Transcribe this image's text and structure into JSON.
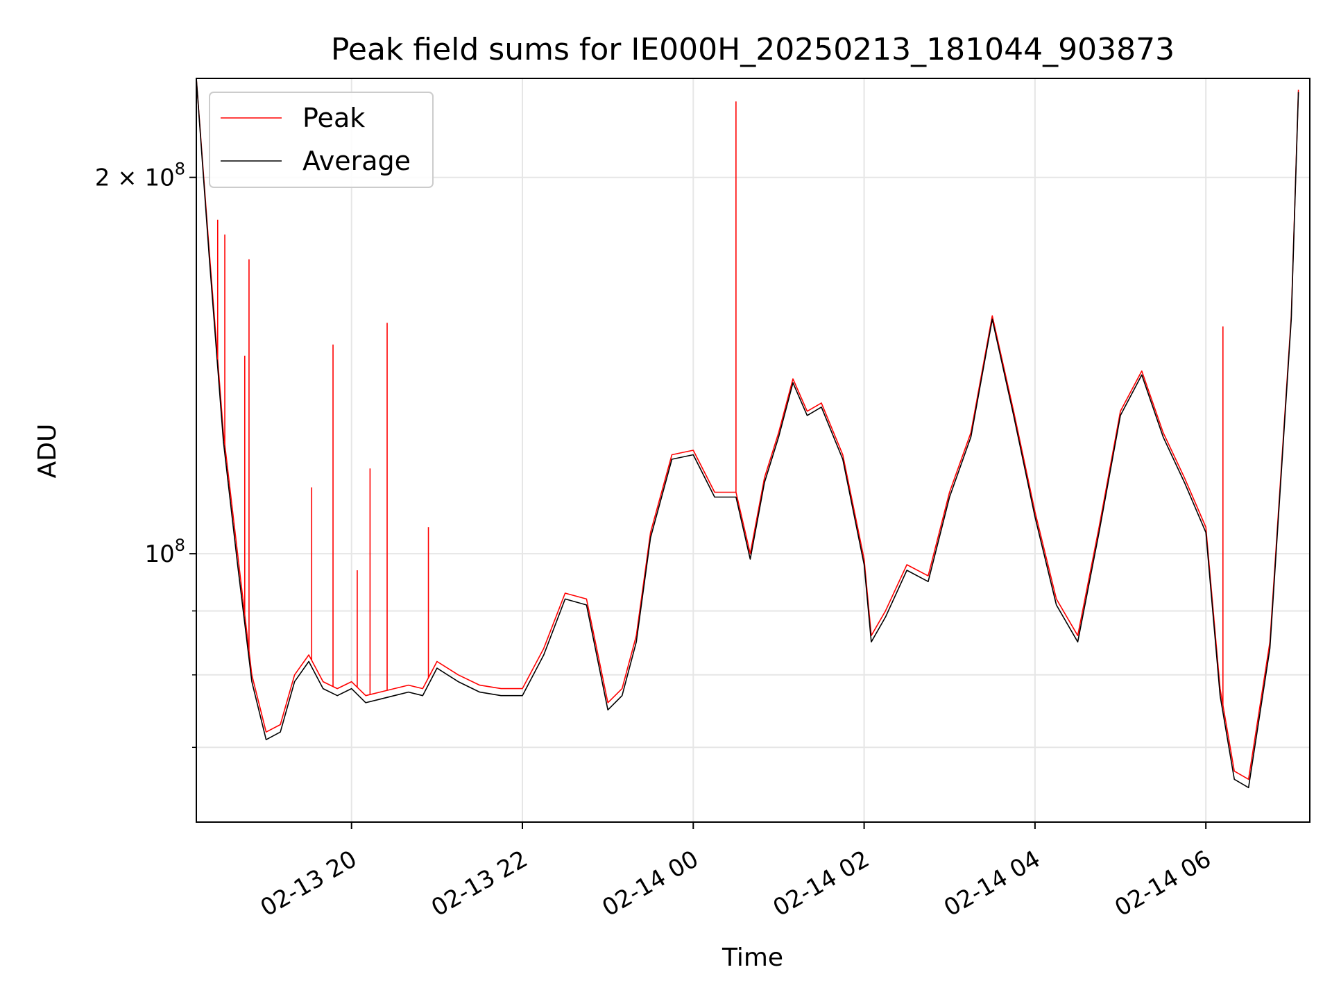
{
  "chart_data": {
    "type": "line",
    "title": "Peak field sums for IE000H_20250213_181044_903873",
    "xlabel": "Time",
    "ylabel": "ADU",
    "yscale": "log",
    "grid": true,
    "legend_position": "top-left",
    "xlim": [
      "2025-02-13 18:11",
      "2025-02-14 07:13"
    ],
    "ylim": [
      61000000,
      240000000
    ],
    "x_ticks": [
      "02-13 20",
      "02-13 22",
      "02-14 00",
      "02-14 02",
      "02-14 04",
      "02-14 06"
    ],
    "x_tick_times": [
      "2025-02-13 20:00",
      "2025-02-13 22:00",
      "2025-02-14 00:00",
      "2025-02-14 02:00",
      "2025-02-14 04:00",
      "2025-02-14 06:00"
    ],
    "y_ticks": [
      {
        "value": 100000000,
        "label_base": "10",
        "label_exp": "8"
      },
      {
        "value": 200000000,
        "label_base": "2 × 10",
        "label_exp": "8"
      }
    ],
    "y_minor_ticks": [
      70000000,
      80000000,
      90000000
    ],
    "series": [
      {
        "name": "Peak",
        "color": "#ff0000",
        "x": [
          "2025-02-13 18:11",
          "2025-02-13 18:20",
          "2025-02-13 18:30",
          "2025-02-13 18:40",
          "2025-02-13 18:50",
          "2025-02-13 19:00",
          "2025-02-13 19:10",
          "2025-02-13 19:20",
          "2025-02-13 19:30",
          "2025-02-13 19:40",
          "2025-02-13 19:50",
          "2025-02-13 20:00",
          "2025-02-13 20:10",
          "2025-02-13 20:20",
          "2025-02-13 20:30",
          "2025-02-13 20:40",
          "2025-02-13 20:50",
          "2025-02-13 21:00",
          "2025-02-13 21:15",
          "2025-02-13 21:30",
          "2025-02-13 21:45",
          "2025-02-13 22:00",
          "2025-02-13 22:15",
          "2025-02-13 22:30",
          "2025-02-13 22:45",
          "2025-02-13 23:00",
          "2025-02-13 23:10",
          "2025-02-13 23:20",
          "2025-02-13 23:30",
          "2025-02-13 23:45",
          "2025-02-14 00:00",
          "2025-02-14 00:15",
          "2025-02-14 00:30",
          "2025-02-14 00:40",
          "2025-02-14 00:50",
          "2025-02-14 01:00",
          "2025-02-14 01:10",
          "2025-02-14 01:20",
          "2025-02-14 01:30",
          "2025-02-14 01:45",
          "2025-02-14 02:00",
          "2025-02-14 02:05",
          "2025-02-14 02:15",
          "2025-02-14 02:30",
          "2025-02-14 02:45",
          "2025-02-14 03:00",
          "2025-02-14 03:15",
          "2025-02-14 03:30",
          "2025-02-14 03:45",
          "2025-02-14 04:00",
          "2025-02-14 04:15",
          "2025-02-14 04:30",
          "2025-02-14 04:45",
          "2025-02-14 05:00",
          "2025-02-14 05:15",
          "2025-02-14 05:30",
          "2025-02-14 05:45",
          "2025-02-14 06:00",
          "2025-02-14 06:10",
          "2025-02-14 06:20",
          "2025-02-14 06:30",
          "2025-02-14 06:45",
          "2025-02-14 07:00",
          "2025-02-14 07:05"
        ],
        "y": [
          240000000,
          175000000,
          125000000,
          100000000,
          80000000,
          72000000,
          73000000,
          80000000,
          83000000,
          79000000,
          78000000,
          79000000,
          77000000,
          77500000,
          78000000,
          78500000,
          78000000,
          82000000,
          80000000,
          78500000,
          78000000,
          78000000,
          84000000,
          93000000,
          92000000,
          76000000,
          78000000,
          86000000,
          104000000,
          120000000,
          121000000,
          112000000,
          112000000,
          100000000,
          115000000,
          125000000,
          138000000,
          130000000,
          132000000,
          120000000,
          99000000,
          86000000,
          90000000,
          98000000,
          96000000,
          112000000,
          125000000,
          155000000,
          130000000,
          108000000,
          92000000,
          86000000,
          105000000,
          130000000,
          140000000,
          125000000,
          115000000,
          105000000,
          78000000,
          67000000,
          66000000,
          85000000,
          155000000,
          235000000
        ]
      },
      {
        "name": "Average",
        "color": "#000000",
        "x": [
          "2025-02-13 18:11",
          "2025-02-13 18:20",
          "2025-02-13 18:30",
          "2025-02-13 18:40",
          "2025-02-13 18:50",
          "2025-02-13 19:00",
          "2025-02-13 19:10",
          "2025-02-13 19:20",
          "2025-02-13 19:30",
          "2025-02-13 19:40",
          "2025-02-13 19:50",
          "2025-02-13 20:00",
          "2025-02-13 20:10",
          "2025-02-13 20:20",
          "2025-02-13 20:30",
          "2025-02-13 20:40",
          "2025-02-13 20:50",
          "2025-02-13 21:00",
          "2025-02-13 21:15",
          "2025-02-13 21:30",
          "2025-02-13 21:45",
          "2025-02-13 22:00",
          "2025-02-13 22:15",
          "2025-02-13 22:30",
          "2025-02-13 22:45",
          "2025-02-13 23:00",
          "2025-02-13 23:10",
          "2025-02-13 23:20",
          "2025-02-13 23:30",
          "2025-02-13 23:45",
          "2025-02-14 00:00",
          "2025-02-14 00:15",
          "2025-02-14 00:30",
          "2025-02-14 00:40",
          "2025-02-14 00:50",
          "2025-02-14 01:00",
          "2025-02-14 01:10",
          "2025-02-14 01:20",
          "2025-02-14 01:30",
          "2025-02-14 01:45",
          "2025-02-14 02:00",
          "2025-02-14 02:05",
          "2025-02-14 02:15",
          "2025-02-14 02:30",
          "2025-02-14 02:45",
          "2025-02-14 03:00",
          "2025-02-14 03:15",
          "2025-02-14 03:30",
          "2025-02-14 03:45",
          "2025-02-14 04:00",
          "2025-02-14 04:15",
          "2025-02-14 04:30",
          "2025-02-14 04:45",
          "2025-02-14 05:00",
          "2025-02-14 05:15",
          "2025-02-14 05:30",
          "2025-02-14 05:45",
          "2025-02-14 06:00",
          "2025-02-14 06:10",
          "2025-02-14 06:20",
          "2025-02-14 06:30",
          "2025-02-14 06:45",
          "2025-02-14 07:00",
          "2025-02-14 07:05"
        ],
        "y": [
          240000000,
          173000000,
          123000000,
          98000000,
          79000000,
          71000000,
          72000000,
          79000000,
          82000000,
          78000000,
          77000000,
          78000000,
          76000000,
          76500000,
          77000000,
          77500000,
          77000000,
          81000000,
          79000000,
          77500000,
          77000000,
          77000000,
          83000000,
          92000000,
          91000000,
          75000000,
          77000000,
          85000000,
          103000000,
          119000000,
          120000000,
          111000000,
          111000000,
          99000000,
          114000000,
          124000000,
          137000000,
          129000000,
          131000000,
          119000000,
          98000000,
          85000000,
          89000000,
          97000000,
          95000000,
          111000000,
          124000000,
          154000000,
          129000000,
          107000000,
          91000000,
          85000000,
          104000000,
          129000000,
          139000000,
          124000000,
          114000000,
          104000000,
          77000000,
          66000000,
          65000000,
          84000000,
          154000000,
          234000000
        ]
      }
    ],
    "spikes": [
      {
        "series": "Peak",
        "x": "2025-02-13 18:26",
        "y": 185000000
      },
      {
        "series": "Peak",
        "x": "2025-02-13 18:31",
        "y": 180000000
      },
      {
        "series": "Peak",
        "x": "2025-02-13 18:45",
        "y": 144000000
      },
      {
        "series": "Peak",
        "x": "2025-02-13 18:48",
        "y": 172000000
      },
      {
        "series": "Peak",
        "x": "2025-02-13 19:32",
        "y": 113000000
      },
      {
        "series": "Peak",
        "x": "2025-02-13 19:47",
        "y": 147000000
      },
      {
        "series": "Peak",
        "x": "2025-02-13 20:04",
        "y": 97000000
      },
      {
        "series": "Peak",
        "x": "2025-02-13 20:13",
        "y": 117000000
      },
      {
        "series": "Peak",
        "x": "2025-02-13 20:25",
        "y": 153000000
      },
      {
        "series": "Peak",
        "x": "2025-02-13 20:54",
        "y": 105000000
      },
      {
        "series": "Peak",
        "x": "2025-02-14 00:30",
        "y": 230000000
      },
      {
        "series": "Peak",
        "x": "2025-02-14 06:12",
        "y": 152000000
      }
    ]
  }
}
